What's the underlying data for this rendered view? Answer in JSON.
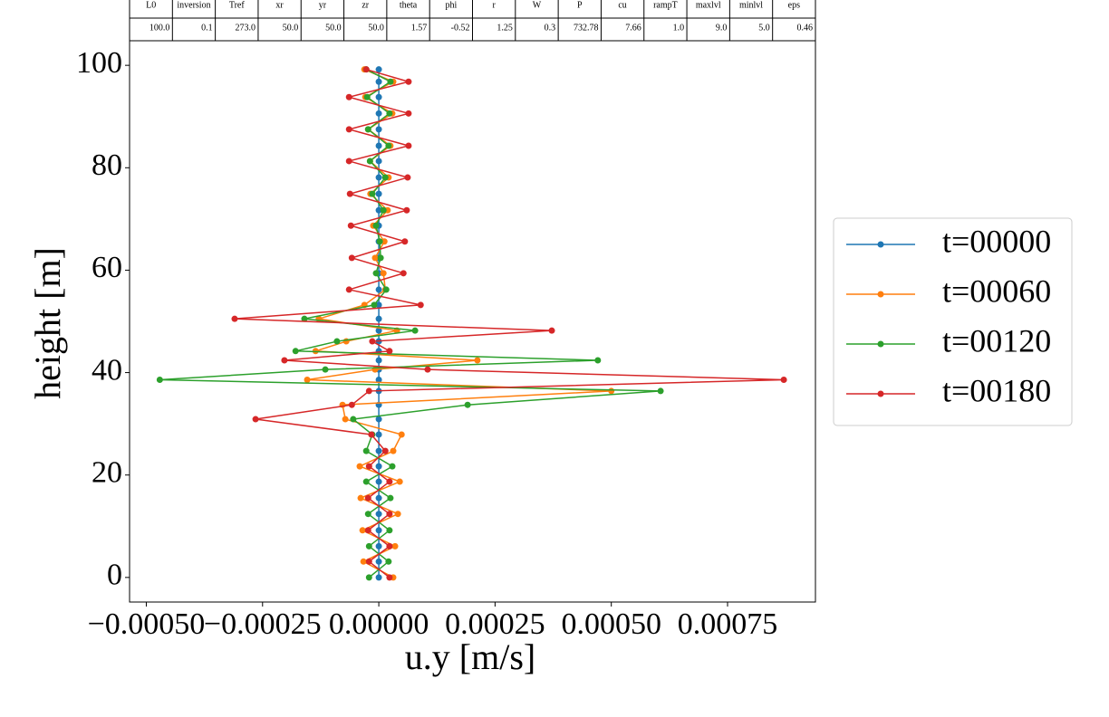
{
  "table": {
    "columns": [
      "L0",
      "inversion",
      "Tref",
      "xr",
      "yr",
      "zr",
      "theta",
      "phi",
      "r",
      "W",
      "P",
      "cu",
      "rampT",
      "maxlvl",
      "minlvl",
      "eps"
    ],
    "values": [
      "100.0",
      "0.1",
      "273.0",
      "50.0",
      "50.0",
      "50.0",
      "1.57",
      "-0.52",
      "1.25",
      "0.3",
      "732.78",
      "7.66",
      "1.0",
      "9.0",
      "5.0",
      "0.46"
    ]
  },
  "chart_data": {
    "type": "line",
    "x_label": "u.y [m/s]",
    "y_label": "height [m]",
    "y": [
      0,
      3.1,
      6.1,
      9.2,
      12.4,
      15.5,
      18.7,
      21.7,
      24.7,
      27.9,
      30.9,
      33.7,
      36.4,
      38.6,
      40.6,
      42.4,
      44.2,
      46.1,
      48.2,
      50.5,
      53.2,
      56.2,
      59.4,
      62.4,
      65.6,
      68.7,
      71.7,
      74.9,
      78.1,
      81.3,
      84.3,
      87.5,
      90.6,
      93.8,
      96.8,
      99.2
    ],
    "series": [
      {
        "name": "t=00000",
        "color": "#1f77b4",
        "values": [
          0,
          0,
          0,
          0,
          0,
          0,
          0,
          0,
          0,
          0,
          0,
          0,
          0,
          0,
          0,
          0,
          0,
          0,
          0,
          0,
          0,
          0,
          0,
          0,
          0,
          0,
          0,
          0,
          0,
          0,
          0,
          0,
          0,
          0,
          0,
          0
        ]
      },
      {
        "name": "t=00060",
        "color": "#ff7f0e",
        "values": [
          3.1e-05,
          -3.3e-05,
          3.5e-05,
          -3.5e-05,
          4.1e-05,
          -3.9e-05,
          4.5e-05,
          -4.1e-05,
          3.1e-05,
          4.9e-05,
          -7.2e-05,
          -7.8e-05,
          0.0005,
          -0.000154,
          -8e-06,
          0.000212,
          -0.000136,
          -7e-05,
          3.9e-05,
          -0.000129,
          -3.1e-05,
          1.4e-05,
          1e-05,
          -8e-06,
          1.2e-05,
          -1.2e-05,
          1.9e-05,
          -1.8e-05,
          2.1e-05,
          -1.9e-05,
          2.5e-05,
          -2.3e-05,
          2.9e-05,
          -2.9e-05,
          3.1e-05,
          -3.1e-05
        ]
      },
      {
        "name": "t=00120",
        "color": "#2ca02c",
        "values": [
          -2.1e-05,
          2.1e-05,
          -2.1e-05,
          2.3e-05,
          -2.3e-05,
          2.5e-05,
          -2.7e-05,
          2.9e-05,
          -2.7e-05,
          -1.4e-05,
          -5.5e-05,
          0.000191,
          0.000606,
          -0.000471,
          -0.000115,
          0.000471,
          -0.000179,
          -9e-05,
          7.8e-05,
          -0.00016,
          -1e-05,
          1.6e-05,
          -6e-06,
          4e-06,
          2e-06,
          -6e-06,
          1e-05,
          -1.4e-05,
          1.4e-05,
          -1.9e-05,
          2.1e-05,
          -2.3e-05,
          2.3e-05,
          -2.5e-05,
          2.5e-05,
          -2.7e-05
        ]
      },
      {
        "name": "t=00180",
        "color": "#d62728",
        "values": [
          2.3e-05,
          -2.1e-05,
          2.3e-05,
          -2.3e-05,
          2.3e-05,
          -2.3e-05,
          2.3e-05,
          -2.1e-05,
          1.4e-05,
          -1.6e-05,
          -0.000265,
          -5.8e-05,
          -2.1e-05,
          0.000871,
          0.000105,
          -0.000203,
          2.3e-05,
          -1.4e-05,
          0.000372,
          -0.00031,
          9e-05,
          -6.4e-05,
          5.3e-05,
          -5.8e-05,
          5.6e-05,
          -6e-05,
          6e-05,
          -6.2e-05,
          6.2e-05,
          -6.4e-05,
          6.4e-05,
          -6.4e-05,
          6.4e-05,
          -6.4e-05,
          6.4e-05,
          -2.7e-05
        ]
      }
    ],
    "xlim": [
      -0.000536,
      0.000939
    ],
    "ylim": [
      -4.8,
      104.8
    ],
    "xticks": [
      {
        "value": -0.0005,
        "label": "−0.00050"
      },
      {
        "value": -0.00025,
        "label": "−0.00025"
      },
      {
        "value": 0,
        "label": "0.00000"
      },
      {
        "value": 0.00025,
        "label": "0.00025"
      },
      {
        "value": 0.0005,
        "label": "0.00050"
      },
      {
        "value": 0.00075,
        "label": "0.00075"
      }
    ],
    "yticks": [
      0,
      20,
      40,
      60,
      80,
      100
    ],
    "grid": false,
    "legend": "right",
    "markers": true
  }
}
